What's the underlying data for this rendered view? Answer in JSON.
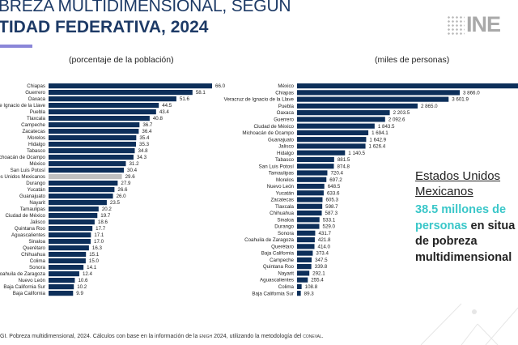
{
  "header": {
    "title_line1": "BREZA MULTIDIMENSIONAL, SEGÚN",
    "title_line2": "TIDAD FEDERATIVA, 2024",
    "logo_text": "INE",
    "accent_color": "#8a86d8"
  },
  "chart_data": [
    {
      "type": "bar",
      "orientation": "horizontal",
      "subtitle": "(porcentaje de la población)",
      "bar_color": "#0d2f5a",
      "highlight_color": "#c0c0c0",
      "highlight_category": "Estados Unidos Mexicanos",
      "categories": [
        "Chiapas",
        "Guerrero",
        "Oaxaca",
        "Veracruz de Ignacio de la Llave",
        "Puebla",
        "Tlaxcala",
        "Campeche",
        "Zacatecas",
        "Morelos",
        "Hidalgo",
        "Tabasco",
        "Michoacán de Ocampo",
        "México",
        "San Luis Potosí",
        "Estados Unidos Mexicanos",
        "Durango",
        "Yucatán",
        "Guanajuato",
        "Nayarit",
        "Tamaulipas",
        "Ciudad de México",
        "Jalisco",
        "Quintana Roo",
        "Aguascalientes",
        "Sinaloa",
        "Querétaro",
        "Chihuahua",
        "Colima",
        "Sonora",
        "Coahuila de Zaragoza",
        "Nuevo León",
        "Baja California Sur",
        "Baja California"
      ],
      "values": [
        66.0,
        58.1,
        51.6,
        44.5,
        43.4,
        40.8,
        36.7,
        36.4,
        35.4,
        35.3,
        34.8,
        34.3,
        31.2,
        30.4,
        29.6,
        27.9,
        26.6,
        26.0,
        23.5,
        20.2,
        19.7,
        18.6,
        17.7,
        17.1,
        17.0,
        16.3,
        15.1,
        15.0,
        14.1,
        12.4,
        10.6,
        10.2,
        9.9
      ],
      "labels": [
        "66.0",
        "58.1",
        "51.6",
        "44.5",
        "43.4",
        "40.8",
        "36.7",
        "36.4",
        "35.4",
        "35.3",
        "34.8",
        "34.3",
        "31.2",
        "30.4",
        "29.6",
        "27.9",
        "26.6",
        "26.0",
        "23.5",
        "20.2",
        "19.7",
        "18.6",
        "17.7",
        "17.1",
        "17.0",
        "16.3",
        "15.1",
        "15.0",
        "14.1",
        "12.4",
        "10.6",
        "10.2",
        "9.9"
      ]
    },
    {
      "type": "bar",
      "orientation": "horizontal",
      "subtitle": "(miles de personas)",
      "bar_color": "#0d2f5a",
      "categories": [
        "México",
        "Chiapas",
        "Veracruz de Ignacio de la Llave",
        "Puebla",
        "Oaxaca",
        "Guerrero",
        "Ciudad de México",
        "Michoacán de Ocampo",
        "Guanajuato",
        "Jalisco",
        "Hidalgo",
        "Tabasco",
        "San Luis Potosí",
        "Tamaulipas",
        "Morelos",
        "Nuevo León",
        "Yucatán",
        "Zacatecas",
        "Tlaxcala",
        "Chihuahua",
        "Sinaloa",
        "Durango",
        "Sonora",
        "Coahuila de Zaragoza",
        "Querétaro",
        "Baja California",
        "Campeche",
        "Quintana Roo",
        "Nayarit",
        "Aguascalientes",
        "Colima",
        "Baja California Sur"
      ],
      "values": [
        null,
        3866.0,
        3601.9,
        2865.0,
        2203.5,
        2092.6,
        1843.5,
        1694.1,
        1642.9,
        1626.4,
        1140.5,
        881.5,
        874.8,
        720.4,
        697.2,
        648.5,
        633.6,
        605.3,
        598.7,
        587.3,
        533.1,
        529.0,
        431.7,
        421.8,
        414.0,
        373.4,
        347.5,
        339.8,
        292.1,
        255.4,
        108.8,
        89.3
      ],
      "labels": [
        "",
        "3 866.0",
        "3 601.9",
        "2 865.0",
        "2 203.5",
        "2 092.6",
        "1 843.5",
        "1 694.1",
        "1 642.9",
        "1 626.4",
        "1 140.5",
        "881.5",
        "874.8",
        "720.4",
        "697.2",
        "648.5",
        "633.6",
        "605.3",
        "598.7",
        "587.3",
        "533.1",
        "529.0",
        "431.7",
        "421.8",
        "414.0",
        "373.4",
        "347.5",
        "339.8",
        "292.1",
        "255.4",
        "108.8",
        "89.3"
      ]
    }
  ],
  "callout": {
    "title_line1": "Estados Unidos",
    "title_line2": "Mexicanos",
    "highlight": "38.5 millones de personas",
    "rest_line": " en situa",
    "line3": "de pobreza",
    "line4": "multidimensional",
    "highlight_color": "#3ac7c9"
  },
  "footer": {
    "source_prefix": "gi.",
    "source_text": " Pobreza multidimensional, 2024. Cálculos con base en la información de la ",
    "enigh": "enigh",
    "source_mid": " 2024, utilizando la metodología del ",
    "coneval": "coneval",
    "source_end": "."
  }
}
